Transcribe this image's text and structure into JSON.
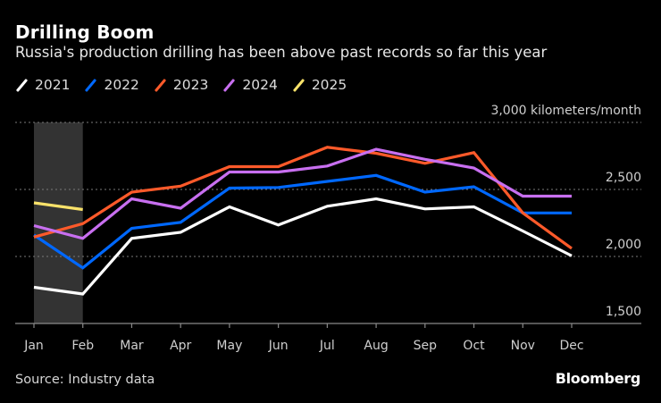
{
  "header": {
    "title": "Drilling Boom",
    "subtitle": "Russia's production drilling has been above past records so far this year"
  },
  "footer": {
    "source": "Source: Industry data",
    "brand": "Bloomberg"
  },
  "chart_data": {
    "type": "line",
    "title": "Drilling Boom",
    "subtitle": "Russia's production drilling has been above past records so far this year",
    "xlabel": "",
    "ylabel": "kilometers/month",
    "y_unit_label": "3,000 kilometers/month",
    "categories": [
      "Jan",
      "Feb",
      "Mar",
      "Apr",
      "May",
      "Jun",
      "Jul",
      "Aug",
      "Sep",
      "Oct",
      "Nov",
      "Dec"
    ],
    "ylim": [
      1500,
      3000
    ],
    "yticks": [
      1500,
      2000,
      2500,
      3000
    ],
    "ytick_labels": [
      "1,500",
      "2,000",
      "2,500",
      "3,000 kilometers/month"
    ],
    "grid": true,
    "legend_position": "top-left",
    "shaded_range": {
      "from": "Jan",
      "to": "Feb",
      "color": "#333333"
    },
    "series": [
      {
        "name": "2021",
        "color": "#ffffff",
        "values": [
          1770,
          1720,
          2135,
          2180,
          2370,
          2235,
          2375,
          2430,
          2355,
          2370,
          2190,
          2005
        ]
      },
      {
        "name": "2022",
        "color": "#0068ff",
        "values": [
          2160,
          1915,
          2210,
          2255,
          2510,
          2515,
          2560,
          2605,
          2480,
          2520,
          2325,
          2325
        ]
      },
      {
        "name": "2023",
        "color": "#ff5a2a",
        "values": [
          2145,
          2245,
          2480,
          2525,
          2670,
          2670,
          2815,
          2770,
          2695,
          2775,
          2325,
          2060
        ]
      },
      {
        "name": "2024",
        "color": "#c86ff0",
        "values": [
          2230,
          2135,
          2430,
          2360,
          2630,
          2630,
          2675,
          2800,
          2725,
          2660,
          2450,
          2450
        ]
      },
      {
        "name": "2025",
        "color": "#f9e26a",
        "values": [
          2400,
          2350,
          null,
          null,
          null,
          null,
          null,
          null,
          null,
          null,
          null,
          null
        ]
      }
    ]
  }
}
